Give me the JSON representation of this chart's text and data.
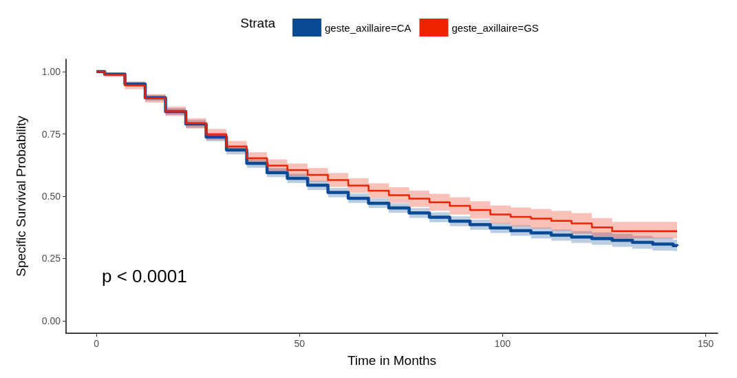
{
  "chart_data": {
    "type": "step",
    "xlabel": "Time in Months",
    "ylabel": "Specific Survival Probability",
    "legend_title": "Strata",
    "legend": "top",
    "xlim": [
      -7.5,
      153
    ],
    "ylim": [
      -0.05,
      1.05
    ],
    "xticks": [
      0,
      50,
      100,
      150
    ],
    "yticks": [
      {
        "value": 0,
        "label": "0.00"
      },
      {
        "value": 0.25,
        "label": "0.25"
      },
      {
        "value": 0.5,
        "label": "0.50"
      },
      {
        "value": 0.75,
        "label": "0.75"
      },
      {
        "value": 1,
        "label": "1.00"
      }
    ],
    "grid": false,
    "marker": "none",
    "line_style": "solid",
    "annotations": [
      "p < 0.0001"
    ],
    "x": [
      0,
      2,
      7,
      12,
      17,
      22,
      27,
      32,
      37,
      42,
      47,
      52,
      57,
      62,
      67,
      72,
      77,
      82,
      87,
      92,
      97,
      102,
      107,
      112,
      117,
      122,
      127,
      132,
      137,
      142,
      143
    ],
    "series": [
      {
        "name": "geste_axillaire=CA",
        "color": "#0b4a94",
        "values": [
          1.0,
          0.99,
          0.95,
          0.895,
          0.84,
          0.79,
          0.738,
          0.686,
          0.632,
          0.595,
          0.572,
          0.544,
          0.515,
          0.492,
          0.472,
          0.453,
          0.433,
          0.416,
          0.4,
          0.386,
          0.373,
          0.362,
          0.353,
          0.344,
          0.336,
          0.33,
          0.323,
          0.315,
          0.308,
          0.302,
          0.3
        ],
        "lower": [
          1.0,
          0.985,
          0.94,
          0.883,
          0.826,
          0.774,
          0.721,
          0.668,
          0.614,
          0.577,
          0.553,
          0.525,
          0.496,
          0.473,
          0.453,
          0.434,
          0.413,
          0.396,
          0.38,
          0.365,
          0.352,
          0.341,
          0.331,
          0.322,
          0.313,
          0.305,
          0.297,
          0.289,
          0.282,
          0.28,
          0.28
        ],
        "upper": [
          1.0,
          0.995,
          0.96,
          0.907,
          0.854,
          0.806,
          0.755,
          0.703,
          0.65,
          0.613,
          0.59,
          0.562,
          0.533,
          0.511,
          0.491,
          0.472,
          0.452,
          0.435,
          0.419,
          0.406,
          0.393,
          0.383,
          0.374,
          0.366,
          0.36,
          0.355,
          0.349,
          0.341,
          0.334,
          0.326,
          0.325
        ]
      },
      {
        "name": "geste_axillaire=GS",
        "color": "#ee2200",
        "values": [
          1.0,
          0.988,
          0.945,
          0.893,
          0.841,
          0.793,
          0.748,
          0.7,
          0.653,
          0.623,
          0.605,
          0.586,
          0.565,
          0.543,
          0.522,
          0.504,
          0.49,
          0.476,
          0.461,
          0.445,
          0.427,
          0.417,
          0.41,
          0.401,
          0.391,
          0.375,
          0.36,
          0.36,
          0.36,
          0.36,
          0.36
        ],
        "lower": [
          1.0,
          0.978,
          0.93,
          0.876,
          0.822,
          0.772,
          0.726,
          0.678,
          0.629,
          0.598,
          0.58,
          0.559,
          0.537,
          0.514,
          0.492,
          0.473,
          0.457,
          0.442,
          0.427,
          0.41,
          0.391,
          0.379,
          0.371,
          0.361,
          0.35,
          0.336,
          0.331,
          0.331,
          0.331,
          0.331,
          0.331
        ],
        "upper": [
          1.0,
          0.996,
          0.96,
          0.91,
          0.86,
          0.813,
          0.77,
          0.722,
          0.677,
          0.648,
          0.631,
          0.613,
          0.593,
          0.572,
          0.552,
          0.536,
          0.523,
          0.51,
          0.496,
          0.48,
          0.463,
          0.455,
          0.449,
          0.441,
          0.432,
          0.412,
          0.397,
          0.397,
          0.397,
          0.397,
          0.397
        ]
      }
    ]
  }
}
